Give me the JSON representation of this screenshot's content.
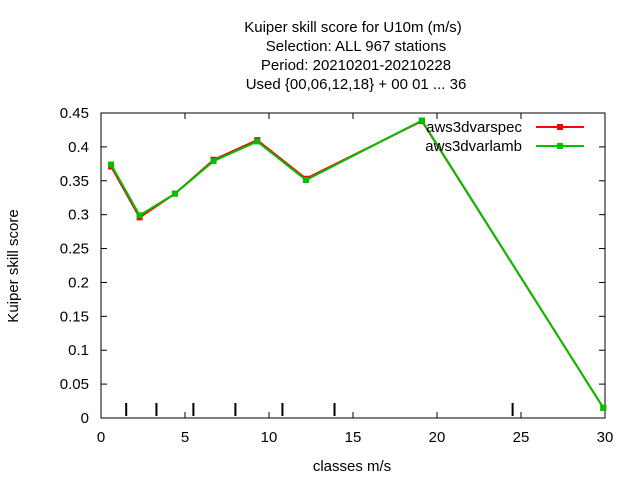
{
  "chart_data": {
    "type": "line",
    "title_lines": [
      "Kuiper skill score  for U10m (m/s)",
      "Selection: ALL    967 stations",
      "Period: 20210201-20210228",
      "Used {00,06,12,18} + 00 01 ... 36"
    ],
    "xlabel": "classes m/s",
    "ylabel": "Kuiper skill score",
    "xlim": [
      0,
      30
    ],
    "ylim": [
      0,
      0.45
    ],
    "xticks": [
      0,
      5,
      10,
      15,
      20,
      25,
      30
    ],
    "xtick_labels": [
      "0",
      "5",
      "10",
      "15",
      "20",
      "25",
      "30"
    ],
    "yticks": [
      0,
      0.05,
      0.1,
      0.15,
      0.2,
      0.25,
      0.3,
      0.35,
      0.4,
      0.45
    ],
    "ytick_labels": [
      "0",
      "0.05",
      "0.1",
      "0.15",
      "0.2",
      "0.25",
      "0.3",
      "0.35",
      "0.4",
      "0.45"
    ],
    "class_marks": [
      1.5,
      3.3,
      5.5,
      8.0,
      10.8,
      13.9,
      24.5
    ],
    "grid": false,
    "legend_position": "top-right",
    "series": [
      {
        "name": "aws3dvarspec",
        "color": "#ff0000",
        "x": [
          0.6,
          2.3,
          4.4,
          6.7,
          9.3,
          12.2,
          19.1,
          29.9
        ],
        "y": [
          0.371,
          0.296,
          0.331,
          0.381,
          0.41,
          0.353,
          0.438,
          0.015
        ]
      },
      {
        "name": "aws3dvarlamb",
        "color": "#00c000",
        "x": [
          0.6,
          2.3,
          4.4,
          6.7,
          9.3,
          12.2,
          19.1,
          29.9
        ],
        "y": [
          0.374,
          0.299,
          0.331,
          0.379,
          0.408,
          0.351,
          0.439,
          0.015
        ]
      }
    ]
  }
}
